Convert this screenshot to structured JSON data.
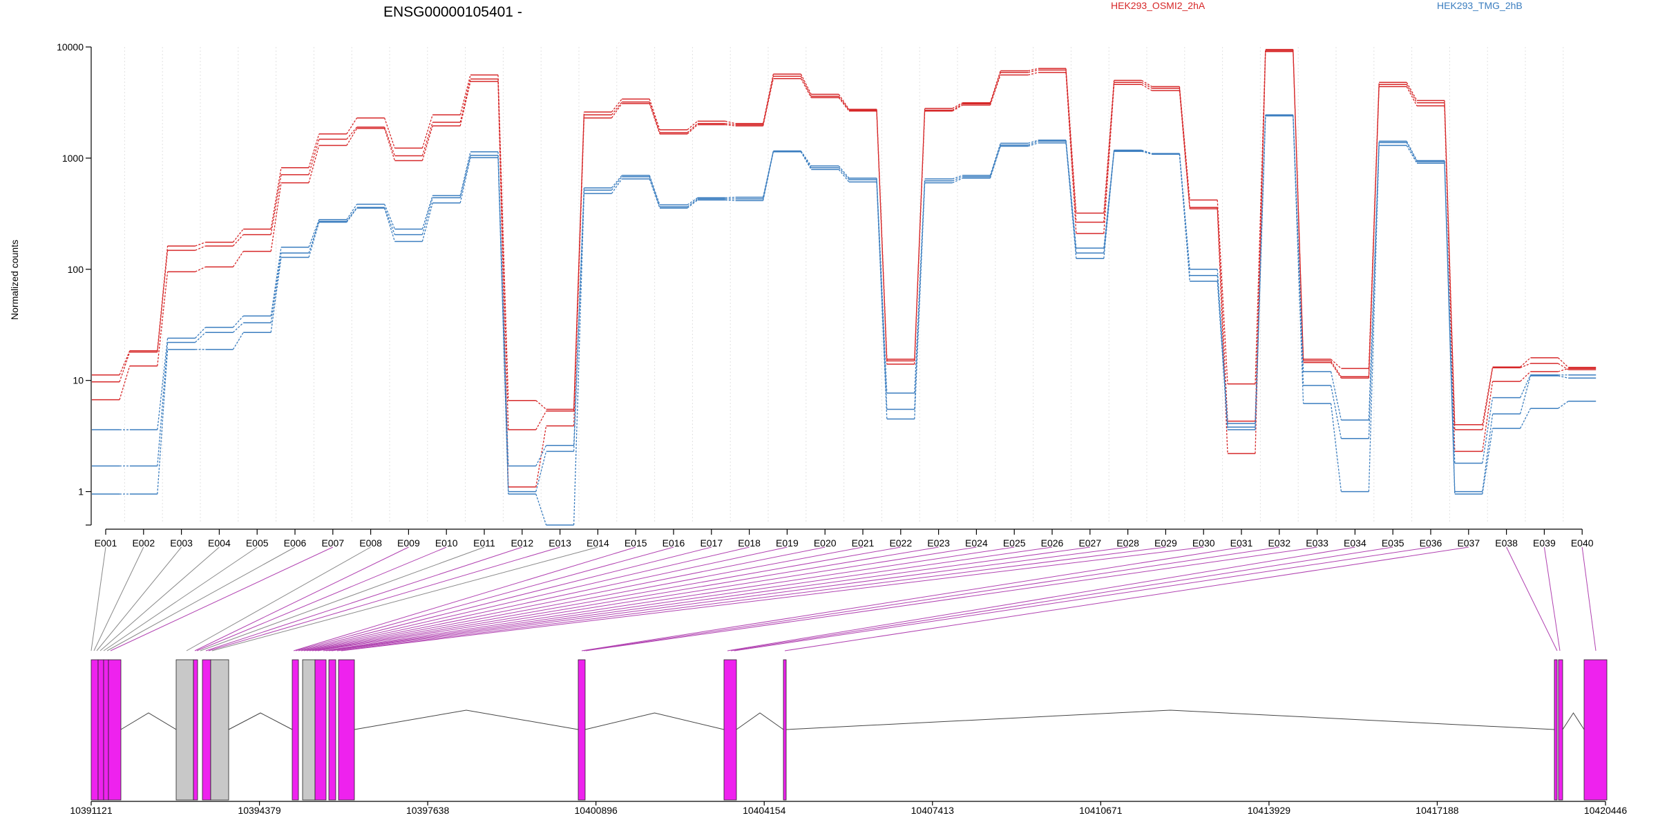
{
  "chart_data": {
    "type": "line",
    "title": "ENSG00000105401 -",
    "ylabel": "Normalized counts",
    "xlabel": "",
    "yscale": "log",
    "ylim": [
      0.5,
      10000
    ],
    "yticks": [
      1,
      10,
      100,
      1000,
      10000
    ],
    "ytick_labels": [
      "1",
      "10",
      "100",
      "1000",
      "10000"
    ],
    "categories": [
      "E001",
      "E002",
      "E003",
      "E004",
      "E005",
      "E006",
      "E007",
      "E008",
      "E009",
      "E010",
      "E011",
      "E012",
      "E013",
      "E014",
      "E015",
      "E016",
      "E017",
      "E018",
      "E019",
      "E020",
      "E021",
      "E022",
      "E023",
      "E024",
      "E025",
      "E026",
      "E027",
      "E028",
      "E029",
      "E030",
      "E031",
      "E032",
      "E033",
      "E034",
      "E035",
      "E036",
      "E037",
      "E038",
      "E039",
      "E040"
    ],
    "legend_placement": "top",
    "grid": "vertical dotted",
    "legend": [
      {
        "name": "HEK293_OSMI2_2hA",
        "color": "#d62728"
      },
      {
        "name": "HEK293_TMG_2hB",
        "color": "#3a7dbf"
      }
    ],
    "series": [
      {
        "group": "HEK293_OSMI2_2hA",
        "color": "#d62728",
        "values": [
          11.2,
          18.5,
          162,
          175,
          230,
          820,
          1650,
          2300,
          1230,
          2450,
          5600,
          6.6,
          5.5,
          2600,
          3400,
          1800,
          2150,
          2050,
          5700,
          3750,
          2750,
          15.5,
          2800,
          3150,
          6100,
          6400,
          320,
          5000,
          4400,
          420,
          9.3,
          9500,
          15.5,
          12.8,
          4800,
          3300,
          4.0,
          13.2,
          16.0,
          13.1
        ]
      },
      {
        "group": "HEK293_OSMI2_2hA",
        "color": "#d62728",
        "values": [
          9.7,
          18.0,
          148,
          162,
          205,
          710,
          1480,
          1900,
          1050,
          2100,
          5150,
          3.6,
          5.3,
          2450,
          3200,
          1700,
          2050,
          2000,
          5450,
          3600,
          2700,
          15.0,
          2700,
          3080,
          5900,
          6200,
          265,
          4800,
          4250,
          360,
          4.3,
          9300,
          15.0,
          10.8,
          4600,
          3150,
          3.6,
          13.0,
          14.2,
          12.5
        ]
      },
      {
        "group": "HEK293_OSMI2_2hA",
        "color": "#d62728",
        "values": [
          6.7,
          13.5,
          95,
          105,
          145,
          600,
          1300,
          1850,
          950,
          1950,
          4900,
          1.1,
          3.9,
          2300,
          3100,
          1650,
          2000,
          1950,
          5200,
          3500,
          2650,
          14.0,
          2650,
          3000,
          5600,
          5900,
          210,
          4600,
          4050,
          350,
          2.2,
          9100,
          14.5,
          10.5,
          4400,
          2950,
          2.3,
          9.8,
          12.0,
          12.8
        ]
      },
      {
        "group": "HEK293_TMG_2hB",
        "color": "#3a7dbf",
        "values": [
          3.6,
          3.6,
          24,
          30,
          38,
          158,
          280,
          385,
          230,
          460,
          1140,
          1.7,
          2.6,
          540,
          700,
          380,
          440,
          445,
          1160,
          850,
          660,
          7.7,
          650,
          700,
          1360,
          1450,
          155,
          1180,
          1100,
          100,
          4.1,
          2450,
          12.0,
          4.4,
          1420,
          950,
          1.8,
          7.0,
          11.2,
          11.2
        ]
      },
      {
        "group": "HEK293_TMG_2hB",
        "color": "#3a7dbf",
        "values": [
          1.7,
          1.7,
          22,
          27,
          33,
          140,
          270,
          360,
          205,
          440,
          1060,
          1.0,
          2.3,
          515,
          680,
          365,
          430,
          430,
          1150,
          820,
          640,
          5.5,
          625,
          680,
          1310,
          1420,
          140,
          1160,
          1090,
          88,
          3.8,
          2420,
          9.0,
          3.0,
          1380,
          930,
          1.0,
          5.0,
          11.0,
          10.5
        ]
      },
      {
        "group": "HEK293_TMG_2hB",
        "color": "#3a7dbf",
        "values": [
          0.95,
          0.95,
          19,
          19,
          27,
          128,
          265,
          355,
          178,
          395,
          1010,
          0.95,
          0.5,
          480,
          650,
          355,
          420,
          415,
          1140,
          790,
          610,
          4.5,
          600,
          660,
          1280,
          1370,
          125,
          1150,
          1085,
          78,
          3.6,
          2400,
          6.2,
          1.0,
          1300,
          900,
          0.95,
          3.7,
          5.6,
          6.5
        ]
      }
    ]
  },
  "gene_model": {
    "coordinate_labels": [
      "10391121",
      "10394379",
      "10397638",
      "10400896",
      "10404154",
      "10407413",
      "10410671",
      "10413929",
      "10417188",
      "10420446"
    ]
  }
}
